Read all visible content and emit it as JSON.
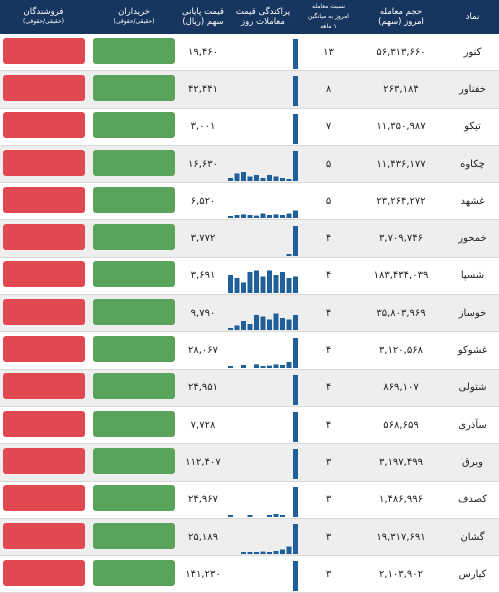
{
  "header": {
    "symbol": "نماد",
    "volume_line1": "حجم معامله",
    "volume_line2": "امروز (سهم)",
    "ratio_line1": "نسبت معامله",
    "ratio_line2": "امروز به میانگین",
    "ratio_line3": "۱ ماهه",
    "spark_line1": "پراکندگی قیمت",
    "spark_line2": "معاملات روز",
    "price_line1": "قیمت پایانی",
    "price_line2": "سهم (ریال)",
    "buyers_line1": "خریداران",
    "buyers_line2": "(حقیقی/حقوقی)",
    "sellers_line1": "فروشندگان",
    "sellers_line2": "(حقیقی/حقوقی)"
  },
  "colors": {
    "header_bg": "#16365f",
    "buy": "#5aa35a",
    "sell": "#e2484f",
    "spark": "#1f5f9a"
  },
  "rows": [
    {
      "symbol": "کنور",
      "volume": "۵۶,۳۱۳,۶۶۰",
      "ratio": "۱۳",
      "price": "۱۹,۴۶۰",
      "spark": [
        0,
        0,
        0,
        0,
        0,
        0,
        0,
        0,
        0,
        0,
        1
      ]
    },
    {
      "symbol": "خفناور",
      "volume": "۲۶۳,۱۸۴",
      "ratio": "۸",
      "price": "۴۲,۴۴۱",
      "spark": [
        0,
        0,
        0,
        0,
        0,
        0,
        0,
        0,
        0,
        0,
        1
      ]
    },
    {
      "symbol": "تیکو",
      "volume": "۱۱,۳۵۰,۹۸۷",
      "ratio": "۷",
      "price": "۳,۰۰۱",
      "spark": [
        0,
        0,
        0,
        0,
        0,
        0,
        0,
        0,
        0,
        0,
        1
      ]
    },
    {
      "symbol": "چکاوه",
      "volume": "۱۱,۴۳۶,۱۷۷",
      "ratio": "۵",
      "price": "۱۶,۶۳۰",
      "spark": [
        0.1,
        0.25,
        0.3,
        0.15,
        0.2,
        0.1,
        0.2,
        0.15,
        0.1,
        0.05,
        1
      ]
    },
    {
      "symbol": "غشهد",
      "volume": "۲۳,۲۶۴,۲۷۲",
      "ratio": "۵",
      "price": "۶,۵۲۰",
      "spark": [
        0.05,
        0.1,
        0.12,
        0.1,
        0.08,
        0.15,
        0.1,
        0.12,
        0.1,
        0.15,
        0.25
      ]
    },
    {
      "symbol": "خمحور",
      "volume": "۳,۷۰۹,۷۴۶",
      "ratio": "۴",
      "price": "۳,۷۷۲",
      "spark": [
        0,
        0,
        0,
        0,
        0,
        0,
        0,
        0,
        0,
        0.05,
        1
      ]
    },
    {
      "symbol": "شسپا",
      "volume": "۱۸۳,۴۳۴,۰۳۹",
      "ratio": "۴",
      "price": "۳,۶۹۱",
      "spark": [
        0.6,
        0.5,
        0.35,
        0.7,
        0.75,
        0.55,
        0.75,
        0.6,
        0.7,
        0.5,
        0.55
      ]
    },
    {
      "symbol": "خوساز",
      "volume": "۳۵,۸۰۳,۹۶۹",
      "ratio": "۴",
      "price": "۹,۷۹۰",
      "spark": [
        0.05,
        0.15,
        0.3,
        0.2,
        0.5,
        0.45,
        0.35,
        0.55,
        0.4,
        0.35,
        0.5
      ]
    },
    {
      "symbol": "غشوکو",
      "volume": "۳,۱۲۰,۵۶۸",
      "ratio": "۴",
      "price": "۲۸,۰۶۷",
      "spark": [
        0.05,
        0,
        0.1,
        0,
        0.12,
        0.05,
        0.08,
        0.12,
        0.1,
        0.2,
        1
      ]
    },
    {
      "symbol": "شتولی",
      "volume": "۸۶۹,۱۰۷",
      "ratio": "۴",
      "price": "۲۴,۹۵۱",
      "spark": [
        0,
        0,
        0,
        0,
        0,
        0,
        0,
        0,
        0,
        0,
        1
      ]
    },
    {
      "symbol": "سآذری",
      "volume": "۵۶۸,۶۵۹",
      "ratio": "۴",
      "price": "۷,۷۲۸",
      "spark": [
        0,
        0,
        0,
        0,
        0,
        0,
        0,
        0,
        0,
        0,
        1
      ]
    },
    {
      "symbol": "وبرق",
      "volume": "۳,۱۹۷,۴۹۹",
      "ratio": "۳",
      "price": "۱۱۲,۴۰۷",
      "spark": [
        0,
        0,
        0,
        0,
        0,
        0,
        0,
        0,
        0,
        0,
        1
      ]
    },
    {
      "symbol": "کصدف",
      "volume": "۱,۴۸۶,۹۹۶",
      "ratio": "۳",
      "price": "۲۴,۹۶۷",
      "spark": [
        0.05,
        0,
        0,
        0.03,
        0,
        0,
        0.05,
        0.1,
        0.05,
        0,
        1
      ]
    },
    {
      "symbol": "گشان",
      "volume": "۱۹,۳۱۷,۶۹۱",
      "ratio": "۳",
      "price": "۲۵,۱۸۹",
      "spark": [
        0,
        0,
        0.02,
        0.05,
        0.02,
        0.08,
        0.05,
        0.1,
        0.15,
        0.25,
        1
      ]
    },
    {
      "symbol": "کپارس",
      "volume": "۲,۱۰۳,۹۰۲",
      "ratio": "۳",
      "price": "۱۴۱,۲۳۰",
      "spark": [
        0,
        0,
        0,
        0,
        0,
        0,
        0,
        0,
        0,
        0,
        1
      ]
    }
  ]
}
